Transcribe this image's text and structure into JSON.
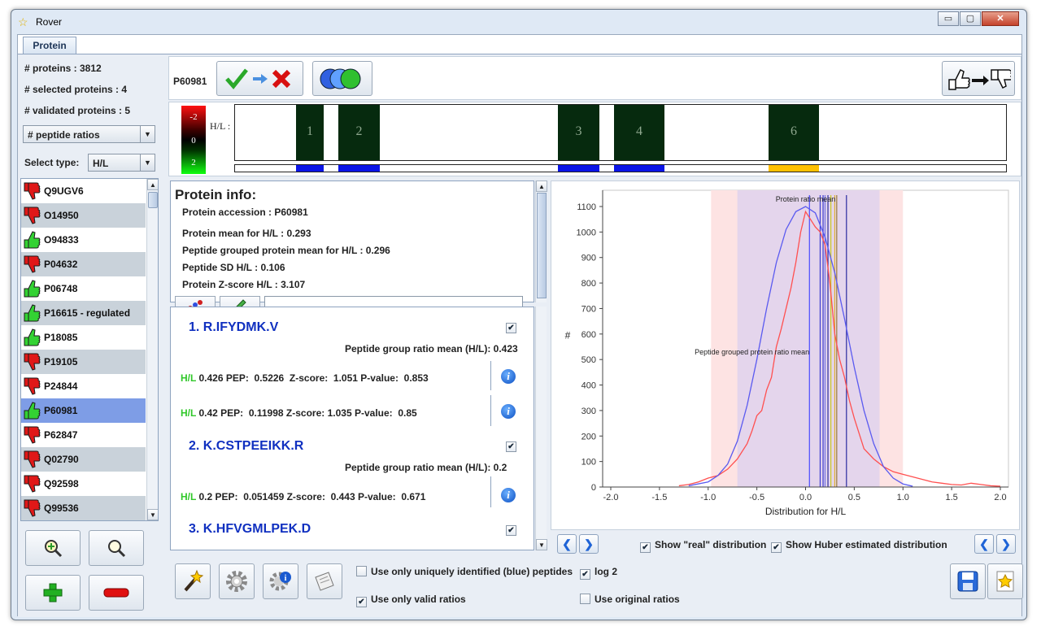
{
  "window": {
    "title": "Rover",
    "minimize": "▭",
    "maximize": "▢",
    "close": "✕"
  },
  "tabs": [
    {
      "label": "Protein"
    }
  ],
  "summary": {
    "proteins": "# proteins : 3812",
    "selected": "# selected proteins : 4",
    "validated": "# validated proteins : 5"
  },
  "sort_combo": {
    "value": "# peptide ratios"
  },
  "select_type": {
    "label": "Select type:",
    "value": "H/L"
  },
  "protein_list": [
    {
      "label": "Q9UGV6",
      "status": "down",
      "shaded": false
    },
    {
      "label": "O14950",
      "status": "down",
      "shaded": true
    },
    {
      "label": "O94833",
      "status": "up",
      "shaded": false
    },
    {
      "label": "P04632",
      "status": "down",
      "shaded": true
    },
    {
      "label": "P06748",
      "status": "up",
      "shaded": false
    },
    {
      "label": "P16615 - regulated",
      "status": "up",
      "shaded": true
    },
    {
      "label": "P18085",
      "status": "up",
      "shaded": false
    },
    {
      "label": "P19105",
      "status": "down",
      "shaded": true
    },
    {
      "label": "P24844",
      "status": "down",
      "shaded": false
    },
    {
      "label": "P60981",
      "status": "up",
      "shaded": false,
      "selected": true
    },
    {
      "label": "P62847",
      "status": "down",
      "shaded": false
    },
    {
      "label": "Q02790",
      "status": "down",
      "shaded": true
    },
    {
      "label": "Q92598",
      "status": "down",
      "shaded": false
    },
    {
      "label": "Q99536",
      "status": "down",
      "shaded": true
    }
  ],
  "left_buttons": [
    "zoom-in-icon",
    "search-icon",
    "add-icon",
    "remove-icon"
  ],
  "header": {
    "accession": "P60981"
  },
  "heatmap": {
    "scale": [
      "-2",
      "0",
      "2"
    ],
    "ratio_label": "H/L :",
    "segments": [
      "1",
      "2",
      "3",
      "4",
      "6"
    ],
    "coverage_colors": {
      "blue": "#0a14e6",
      "orange": "#ffc000"
    }
  },
  "protein_info": {
    "heading": "Protein info:",
    "accession": "Protein accession : P60981",
    "mean": "Protein mean for H/L : 0.293",
    "grouped_mean": "Peptide grouped protein mean for H/L : 0.296",
    "sd": "Peptide SD H/L : 0.106",
    "zscore": "Protein Z-score H/L : 3.107",
    "comment_field": ""
  },
  "peptides": [
    {
      "title": "1. R.IFYDMK.V",
      "group_mean": "Peptide group ratio mean (H/L): 0.423",
      "checked": true,
      "rows": [
        {
          "type": "H/L",
          "value": "0.426",
          "pep_label": "PEP:",
          "pep": "0.5226",
          "z_label": "Z-score:",
          "z": "1.051",
          "p_label": "P-value:",
          "p": "0.853"
        },
        {
          "type": "H/L",
          "value": "0.42",
          "pep_label": "PEP:",
          "pep": "0.11998",
          "z_label": "Z-score:",
          "z": "1.035",
          "p_label": "P-value:",
          "p": "0.85"
        }
      ]
    },
    {
      "title": "2. K.CSTPEEIKK.R",
      "group_mean": "Peptide group ratio mean (H/L): 0.2",
      "checked": true,
      "rows": [
        {
          "type": "H/L",
          "value": "0.2",
          "pep_label": "PEP:",
          "pep": "0.051459",
          "z_label": "Z-score:",
          "z": "0.443",
          "p_label": "P-value:",
          "p": "0.671"
        }
      ]
    },
    {
      "title": "3. K.HFVGMLPEK.D",
      "checked": true
    }
  ],
  "chart_data": {
    "type": "line",
    "xlabel": "Distribution for H/L",
    "ylabel": "#",
    "xlim": [
      -2.0,
      2.0
    ],
    "ylim": [
      0,
      1100
    ],
    "xticks": [
      "-2.0",
      "-1.5",
      "-1.0",
      "-0.5",
      "0.0",
      "0.5",
      "1.0",
      "1.5",
      "2.0"
    ],
    "yticks": [
      "0",
      "100",
      "200",
      "300",
      "400",
      "500",
      "600",
      "700",
      "800",
      "900",
      "1000",
      "1100"
    ],
    "annotations": [
      "Protein ratio mean",
      "Peptide grouped protein ratio mean"
    ],
    "bands": [
      {
        "from": -0.97,
        "to": 1.0,
        "color": "#fde3e3"
      },
      {
        "from": -0.7,
        "to": 0.76,
        "color": "#e4d5ec"
      }
    ],
    "vlines": [
      {
        "x": 0.04,
        "color": "#4a4aff"
      },
      {
        "x": 0.15,
        "color": "#3b3bd0"
      },
      {
        "x": 0.18,
        "color": "#3b3bd0"
      },
      {
        "x": 0.2,
        "color": "#7070e0"
      },
      {
        "x": 0.23,
        "color": "#2a2aa0"
      },
      {
        "x": 0.26,
        "color": "#c8c820"
      },
      {
        "x": 0.3,
        "color": "#e0b030"
      },
      {
        "x": 0.32,
        "color": "#9a7a3a"
      },
      {
        "x": 0.42,
        "color": "#2a2aa0"
      }
    ],
    "series": [
      {
        "name": "real",
        "color": "#ff5050",
        "x": [
          -1.3,
          -1.2,
          -1.1,
          -1.0,
          -0.9,
          -0.8,
          -0.7,
          -0.6,
          -0.55,
          -0.5,
          -0.45,
          -0.4,
          -0.35,
          -0.3,
          -0.25,
          -0.2,
          -0.15,
          -0.1,
          -0.05,
          0.0,
          0.05,
          0.1,
          0.15,
          0.2,
          0.25,
          0.3,
          0.35,
          0.4,
          0.45,
          0.5,
          0.6,
          0.7,
          0.8,
          0.9,
          1.0,
          1.1,
          1.2,
          1.3,
          1.4,
          1.5,
          1.6,
          1.7,
          1.8,
          1.9,
          2.0
        ],
        "values": [
          5,
          10,
          20,
          35,
          45,
          70,
          110,
          170,
          220,
          280,
          300,
          380,
          430,
          550,
          620,
          700,
          780,
          880,
          1000,
          1080,
          1050,
          1020,
          1000,
          950,
          800,
          600,
          500,
          430,
          340,
          270,
          150,
          110,
          80,
          60,
          50,
          40,
          30,
          20,
          15,
          10,
          8,
          15,
          10,
          5,
          3
        ]
      },
      {
        "name": "Huber",
        "color": "#5a5af0",
        "x": [
          -1.2,
          -1.0,
          -0.9,
          -0.8,
          -0.7,
          -0.6,
          -0.5,
          -0.4,
          -0.3,
          -0.2,
          -0.1,
          0.0,
          0.1,
          0.2,
          0.3,
          0.4,
          0.5,
          0.6,
          0.7,
          0.8,
          0.9,
          1.0,
          1.1
        ],
        "values": [
          5,
          20,
          45,
          90,
          180,
          320,
          500,
          700,
          880,
          1010,
          1080,
          1100,
          1075,
          980,
          840,
          660,
          470,
          300,
          170,
          80,
          35,
          12,
          3
        ]
      }
    ]
  },
  "chart_options": {
    "show_real": "Show \"real\" distribution",
    "show_huber": "Show Huber estimated distribution"
  },
  "bottom_options": {
    "unique_blue": "Use only uniquely identified (blue) peptides",
    "log2": "log 2",
    "valid_ratios": "Use only valid ratios",
    "original_ratios": "Use original ratios"
  }
}
